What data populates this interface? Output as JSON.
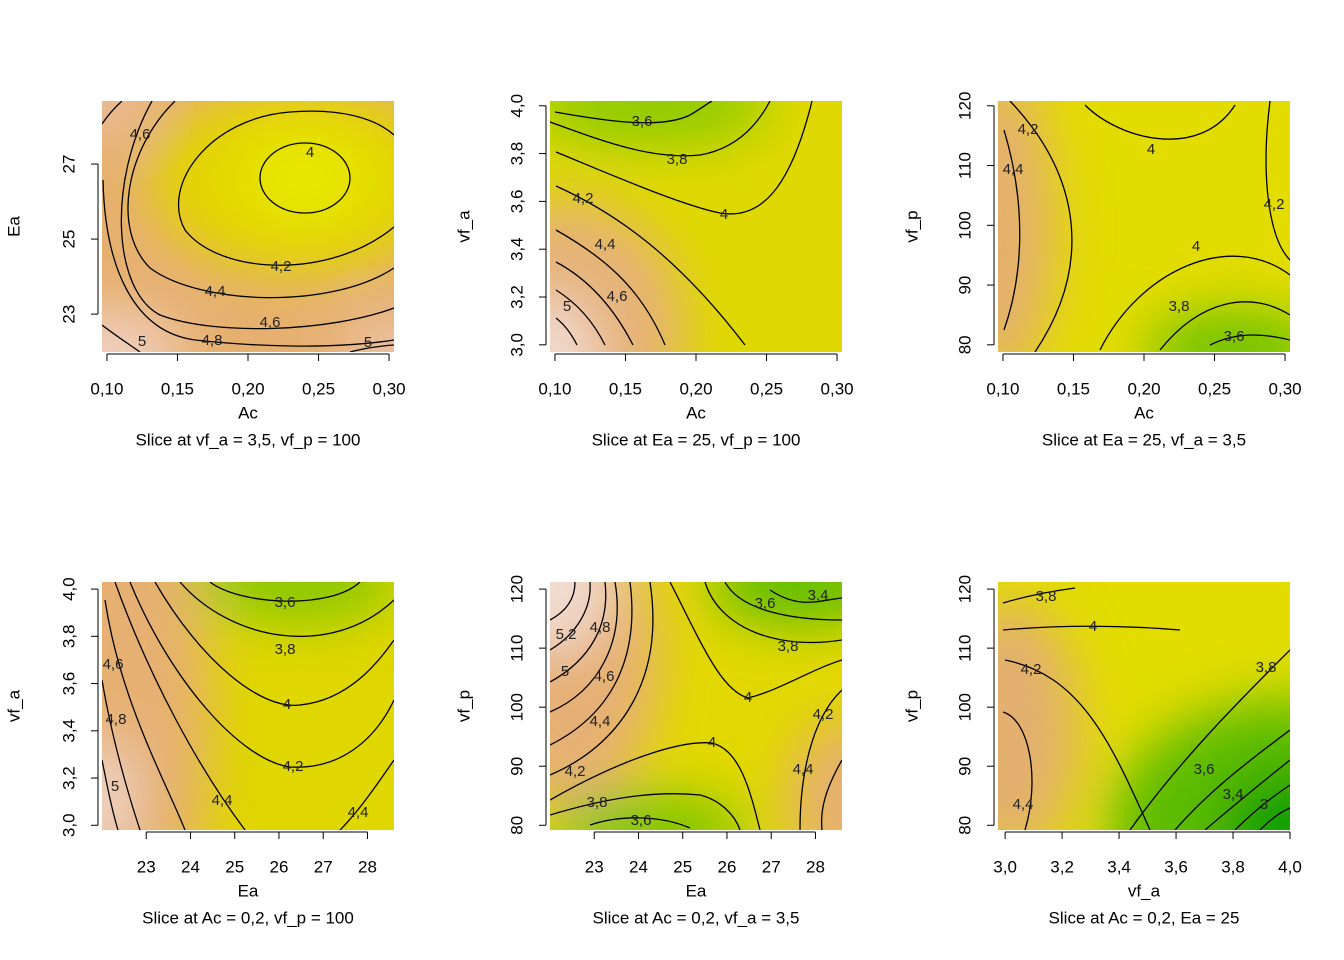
{
  "chart_data": [
    {
      "type": "contour",
      "xlabel": "Ac",
      "ylabel": "Ea",
      "subtitle": "Slice at vf_a = 3,5, vf_p = 100",
      "xlim": [
        0.0965,
        0.3035
      ],
      "ylim": [
        21.99,
        28.68
      ],
      "xticks": [
        {
          "value": 0.1,
          "label": "0,10"
        },
        {
          "value": 0.15,
          "label": "0,15"
        },
        {
          "value": 0.2,
          "label": "0,20"
        },
        {
          "value": 0.25,
          "label": "0,25"
        },
        {
          "value": 0.3,
          "label": "0,30"
        }
      ],
      "yticks": [
        23,
        25,
        27
      ],
      "contour_labels": [
        {
          "value": 4.6,
          "label": "4,6"
        },
        {
          "value": 4,
          "label": "4"
        },
        {
          "value": 4.2,
          "label": "4,2"
        },
        {
          "value": 4.4,
          "label": "4,4"
        },
        {
          "value": 4.6,
          "label": "4,6"
        },
        {
          "value": 4.8,
          "label": "4,8"
        },
        {
          "value": 5,
          "label": "5"
        },
        {
          "value": 5,
          "label": "5"
        }
      ]
    },
    {
      "type": "contour",
      "xlabel": "Ac",
      "ylabel": "vf_a",
      "subtitle": "Slice at Ea = 25, vf_p = 100",
      "xlim": [
        0.0965,
        0.3035
      ],
      "ylim": [
        2.97,
        4.02
      ],
      "xticks": [
        {
          "value": 0.1,
          "label": "0,10"
        },
        {
          "value": 0.15,
          "label": "0,15"
        },
        {
          "value": 0.2,
          "label": "0,20"
        },
        {
          "value": 0.25,
          "label": "0,25"
        },
        {
          "value": 0.3,
          "label": "0,30"
        }
      ],
      "yticks": [
        {
          "value": 3,
          "label": "3,0"
        },
        {
          "value": 3.2,
          "label": "3,2"
        },
        {
          "value": 3.4,
          "label": "3,4"
        },
        {
          "value": 3.6,
          "label": "3,6"
        },
        {
          "value": 3.8,
          "label": "3,8"
        },
        {
          "value": 4,
          "label": "4,0"
        }
      ],
      "contour_labels": [
        {
          "value": 3.6,
          "label": "3,6"
        },
        {
          "value": 3.8,
          "label": "3,8"
        },
        {
          "value": 4,
          "label": "4"
        },
        {
          "value": 4.2,
          "label": "4,2"
        },
        {
          "value": 4.4,
          "label": "4,4"
        },
        {
          "value": 4.6,
          "label": "4,6"
        },
        {
          "value": 5,
          "label": "5"
        }
      ]
    },
    {
      "type": "contour",
      "xlabel": "Ac",
      "ylabel": "vf_p",
      "subtitle": "Slice at Ea = 25, vf_a = 3,5",
      "xlim": [
        0.0965,
        0.3035
      ],
      "ylim": [
        78.8,
        120.8
      ],
      "xticks": [
        {
          "value": 0.1,
          "label": "0,10"
        },
        {
          "value": 0.15,
          "label": "0,15"
        },
        {
          "value": 0.2,
          "label": "0,20"
        },
        {
          "value": 0.25,
          "label": "0,25"
        },
        {
          "value": 0.3,
          "label": "0,30"
        }
      ],
      "yticks": [
        80,
        90,
        100,
        110,
        120
      ],
      "contour_labels": [
        {
          "value": 4.2,
          "label": "4,2"
        },
        {
          "value": 4.4,
          "label": "4,4"
        },
        {
          "value": 4,
          "label": "4"
        },
        {
          "value": 4.2,
          "label": "4,2"
        },
        {
          "value": 4,
          "label": "4"
        },
        {
          "value": 3.8,
          "label": "3,8"
        },
        {
          "value": 3.6,
          "label": "3,6"
        }
      ]
    },
    {
      "type": "contour",
      "xlabel": "Ea",
      "ylabel": "vf_a",
      "subtitle": "Slice at Ac = 0,2, vf_p = 100",
      "xlim": [
        22.0,
        28.6
      ],
      "ylim": [
        2.98,
        4.03
      ],
      "xticks": [
        23,
        24,
        25,
        26,
        27,
        28
      ],
      "yticks": [
        {
          "value": 3,
          "label": "3,0"
        },
        {
          "value": 3.2,
          "label": "3,2"
        },
        {
          "value": 3.4,
          "label": "3,4"
        },
        {
          "value": 3.6,
          "label": "3,6"
        },
        {
          "value": 3.8,
          "label": "3,8"
        },
        {
          "value": 4,
          "label": "4,0"
        }
      ],
      "contour_labels": [
        {
          "value": 3.6,
          "label": "3,6"
        },
        {
          "value": 3.8,
          "label": "3,8"
        },
        {
          "value": 4,
          "label": "4"
        },
        {
          "value": 4.2,
          "label": "4,2"
        },
        {
          "value": 4.4,
          "label": "4,4"
        },
        {
          "value": 4.4,
          "label": "4,4"
        },
        {
          "value": 4.6,
          "label": "4,6"
        },
        {
          "value": 4.8,
          "label": "4,8"
        },
        {
          "value": 5,
          "label": "5"
        }
      ]
    },
    {
      "type": "contour",
      "xlabel": "Ea",
      "ylabel": "vf_p",
      "subtitle": "Slice at Ac = 0,2, vf_a = 3,5",
      "xlim": [
        22.0,
        28.6
      ],
      "ylim": [
        79.2,
        121.2
      ],
      "xticks": [
        23,
        24,
        25,
        26,
        27,
        28
      ],
      "yticks": [
        80,
        90,
        100,
        110,
        120
      ],
      "contour_labels": [
        {
          "value": 3.4,
          "label": "3,4"
        },
        {
          "value": 3.6,
          "label": "3,6"
        },
        {
          "value": 3.8,
          "label": "3,8"
        },
        {
          "value": 4,
          "label": "4"
        },
        {
          "value": 4,
          "label": "4"
        },
        {
          "value": 4.2,
          "label": "4,2"
        },
        {
          "value": 4.4,
          "label": "4,4"
        },
        {
          "value": 5.2,
          "label": "5,2"
        },
        {
          "value": 5,
          "label": "5"
        },
        {
          "value": 4.8,
          "label": "4,8"
        },
        {
          "value": 4.6,
          "label": "4,6"
        },
        {
          "value": 4.4,
          "label": "4,4"
        },
        {
          "value": 4.2,
          "label": "4,2"
        },
        {
          "value": 3.8,
          "label": "3,8"
        },
        {
          "value": 3.6,
          "label": "3,6"
        }
      ]
    },
    {
      "type": "contour",
      "xlabel": "vf_a",
      "ylabel": "vf_p",
      "subtitle": "Slice at Ac = 0,2, Ea = 25",
      "xlim": [
        2.975,
        4.0
      ],
      "ylim": [
        79.2,
        121.2
      ],
      "xticks": [
        {
          "value": 3,
          "label": "3,0"
        },
        {
          "value": 3.2,
          "label": "3,2"
        },
        {
          "value": 3.4,
          "label": "3,4"
        },
        {
          "value": 3.6,
          "label": "3,6"
        },
        {
          "value": 3.8,
          "label": "3,8"
        },
        {
          "value": 4,
          "label": "4,0"
        }
      ],
      "yticks": [
        80,
        90,
        100,
        110,
        120
      ],
      "contour_labels": [
        {
          "value": 3.8,
          "label": "3,8"
        },
        {
          "value": 4,
          "label": "4"
        },
        {
          "value": 4.2,
          "label": "4,2"
        },
        {
          "value": 4.4,
          "label": "4,4"
        },
        {
          "value": 3.8,
          "label": "3,8"
        },
        {
          "value": 3.6,
          "label": "3,6"
        },
        {
          "value": 3.4,
          "label": "3,4"
        },
        {
          "value": 3,
          "label": "3"
        }
      ]
    }
  ]
}
